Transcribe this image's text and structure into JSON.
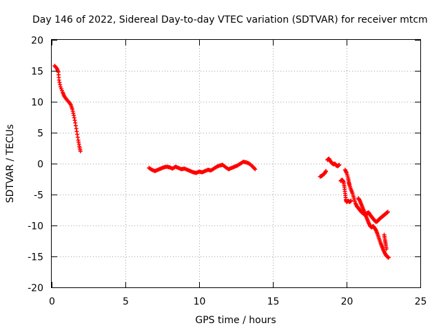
{
  "chart_data": {
    "type": "scatter",
    "title": "Day 146 of 2022, Sidereal Day-to-day VTEC variation (SDTVAR) for receiver mtcm",
    "xlabel": "GPS time / hours",
    "ylabel": "SDTVAR / TECUs",
    "xlim": [
      0,
      25
    ],
    "ylim": [
      -20,
      20
    ],
    "xticks": [
      0,
      5,
      10,
      15,
      20,
      25
    ],
    "yticks": [
      -20,
      -15,
      -10,
      -5,
      0,
      5,
      10,
      15,
      20
    ],
    "xtick_labels": [
      "0",
      "5",
      "10",
      "15",
      "20",
      "25"
    ],
    "ytick_labels": [
      "-20",
      "-15",
      "-10",
      "-5",
      "0",
      "5",
      "10",
      "15",
      "20"
    ],
    "grid": true,
    "legend": "none",
    "marker": "plus",
    "color": "#ff0000",
    "series": [
      {
        "name": "segment-1",
        "points": [
          [
            0.2,
            15.8
          ],
          [
            0.35,
            15.4
          ],
          [
            0.45,
            14.8
          ],
          [
            0.5,
            13.5
          ],
          [
            0.6,
            12.4
          ],
          [
            0.75,
            11.5
          ],
          [
            0.85,
            10.9
          ],
          [
            1.0,
            10.4
          ],
          [
            1.15,
            10.0
          ],
          [
            1.3,
            9.5
          ],
          [
            1.4,
            8.8
          ],
          [
            1.5,
            7.8
          ],
          [
            1.6,
            6.6
          ],
          [
            1.7,
            5.2
          ],
          [
            1.8,
            3.8
          ],
          [
            1.88,
            2.8
          ],
          [
            1.95,
            2.0
          ]
        ]
      },
      {
        "name": "segment-2",
        "points": [
          [
            6.6,
            -0.7
          ],
          [
            6.8,
            -1.0
          ],
          [
            7.0,
            -1.2
          ],
          [
            7.2,
            -1.0
          ],
          [
            7.4,
            -0.8
          ],
          [
            7.6,
            -0.6
          ],
          [
            7.8,
            -0.5
          ],
          [
            8.0,
            -0.6
          ],
          [
            8.2,
            -0.8
          ],
          [
            8.4,
            -0.5
          ],
          [
            8.6,
            -0.7
          ],
          [
            8.8,
            -0.9
          ],
          [
            9.0,
            -0.8
          ],
          [
            9.2,
            -1.0
          ],
          [
            9.4,
            -1.2
          ],
          [
            9.6,
            -1.4
          ],
          [
            9.8,
            -1.5
          ],
          [
            10.0,
            -1.3
          ],
          [
            10.2,
            -1.4
          ],
          [
            10.4,
            -1.2
          ],
          [
            10.6,
            -1.0
          ],
          [
            10.8,
            -1.1
          ],
          [
            11.0,
            -0.8
          ],
          [
            11.2,
            -0.5
          ],
          [
            11.4,
            -0.3
          ],
          [
            11.6,
            -0.2
          ],
          [
            11.8,
            -0.6
          ],
          [
            12.0,
            -0.9
          ],
          [
            12.2,
            -0.7
          ],
          [
            12.4,
            -0.5
          ],
          [
            12.6,
            -0.3
          ],
          [
            12.8,
            0.0
          ],
          [
            13.0,
            0.3
          ],
          [
            13.2,
            0.2
          ],
          [
            13.4,
            0.0
          ],
          [
            13.6,
            -0.4
          ],
          [
            13.8,
            -0.9
          ]
        ]
      },
      {
        "name": "segment-3",
        "points": [
          [
            18.2,
            -2.1
          ],
          [
            18.3,
            -2.0
          ],
          [
            18.4,
            -1.8
          ],
          [
            18.5,
            -1.6
          ],
          [
            18.6,
            -1.2
          ]
        ]
      },
      {
        "name": "segment-4",
        "points": [
          [
            18.7,
            0.6
          ],
          [
            18.8,
            0.8
          ],
          [
            18.9,
            0.4
          ],
          [
            19.0,
            0.1
          ],
          [
            19.1,
            -0.1
          ],
          [
            19.2,
            0.0
          ],
          [
            19.3,
            -0.3
          ],
          [
            19.4,
            -0.4
          ],
          [
            19.5,
            -0.2
          ]
        ]
      },
      {
        "name": "segment-5",
        "points": [
          [
            19.6,
            -2.8
          ],
          [
            19.7,
            -2.6
          ],
          [
            19.8,
            -3.0
          ],
          [
            19.85,
            -3.8
          ],
          [
            19.9,
            -4.8
          ],
          [
            19.95,
            -5.8
          ],
          [
            20.0,
            -6.2
          ],
          [
            20.1,
            -6.0
          ],
          [
            20.2,
            -6.2
          ],
          [
            20.3,
            -6.0
          ]
        ]
      },
      {
        "name": "segment-6",
        "points": [
          [
            19.9,
            -1.0
          ],
          [
            20.0,
            -1.5
          ],
          [
            20.1,
            -2.3
          ],
          [
            20.15,
            -3.0
          ],
          [
            20.2,
            -3.5
          ],
          [
            20.3,
            -4.2
          ],
          [
            20.4,
            -4.8
          ],
          [
            20.5,
            -5.6
          ],
          [
            20.6,
            -6.4
          ],
          [
            20.7,
            -6.9
          ],
          [
            20.8,
            -7.2
          ],
          [
            20.9,
            -7.5
          ],
          [
            21.0,
            -7.8
          ],
          [
            21.1,
            -8.0
          ],
          [
            21.2,
            -8.2
          ],
          [
            21.3,
            -8.1
          ],
          [
            21.4,
            -8.0
          ],
          [
            21.5,
            -7.9
          ],
          [
            21.6,
            -8.3
          ],
          [
            21.7,
            -8.6
          ],
          [
            21.8,
            -8.9
          ],
          [
            21.9,
            -9.2
          ],
          [
            22.0,
            -9.4
          ],
          [
            22.1,
            -9.3
          ],
          [
            22.2,
            -9.0
          ],
          [
            22.3,
            -8.8
          ],
          [
            22.4,
            -8.6
          ],
          [
            22.5,
            -8.4
          ],
          [
            22.6,
            -8.2
          ],
          [
            22.7,
            -8.0
          ],
          [
            22.8,
            -7.8
          ]
        ]
      },
      {
        "name": "segment-7",
        "points": [
          [
            20.8,
            -5.6
          ],
          [
            20.9,
            -6.0
          ],
          [
            21.0,
            -6.6
          ],
          [
            21.1,
            -7.2
          ],
          [
            21.2,
            -7.8
          ],
          [
            21.3,
            -8.4
          ],
          [
            21.4,
            -9.0
          ],
          [
            21.5,
            -9.6
          ],
          [
            21.6,
            -10.1
          ],
          [
            21.7,
            -10.3
          ],
          [
            21.8,
            -10.1
          ],
          [
            21.9,
            -10.4
          ],
          [
            22.0,
            -10.8
          ],
          [
            22.1,
            -11.4
          ],
          [
            22.2,
            -12.1
          ],
          [
            22.3,
            -12.8
          ],
          [
            22.4,
            -13.4
          ],
          [
            22.5,
            -14.0
          ],
          [
            22.6,
            -14.5
          ],
          [
            22.7,
            -14.9
          ],
          [
            22.8,
            -15.1
          ],
          [
            22.85,
            -15.2
          ]
        ]
      },
      {
        "name": "segment-8",
        "points": [
          [
            22.55,
            -11.5
          ],
          [
            22.6,
            -12.3
          ],
          [
            22.65,
            -13.0
          ],
          [
            22.7,
            -13.8
          ]
        ]
      }
    ]
  }
}
